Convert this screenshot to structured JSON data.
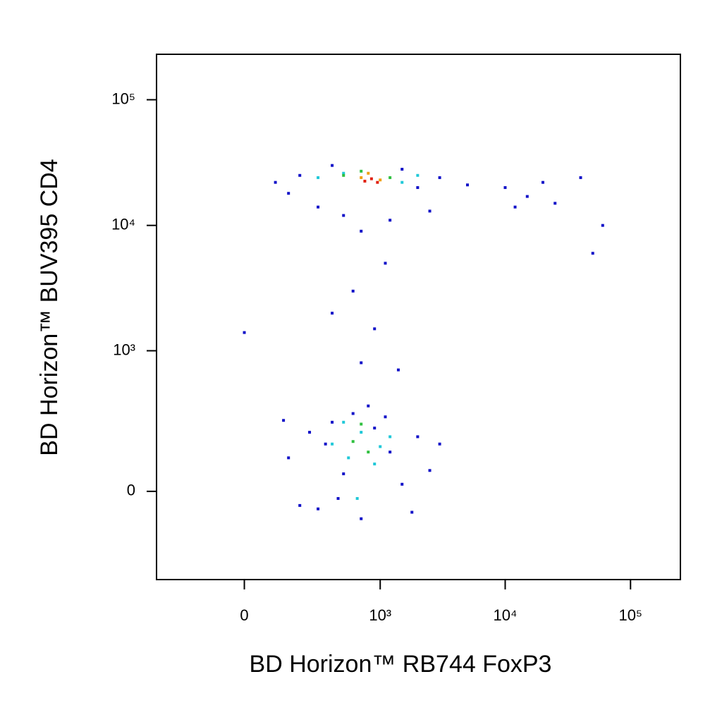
{
  "chart_data": {
    "type": "scatter",
    "x_label": "BD Horizon™ RB744 FoxP3",
    "y_label": "BD Horizon™  BUV395  CD4",
    "xscale": "biexponential",
    "yscale": "biexponential",
    "xlim": [
      -400,
      250000
    ],
    "ylim": [
      -370,
      230000
    ],
    "xticks": [
      0,
      {
        "value": 1000,
        "label": "10³"
      },
      {
        "value": 10000,
        "label": "10⁴"
      },
      {
        "value": 100000,
        "label": "10⁵"
      }
    ],
    "yticks": [
      0,
      {
        "value": 1000,
        "label": "10³"
      },
      {
        "value": 10000,
        "label": "10⁴"
      },
      {
        "value": 100000,
        "label": "10⁵"
      }
    ],
    "series": [
      {
        "color": "#1010c8",
        "x": [
          150,
          250,
          300,
          400,
          500,
          600,
          700,
          900,
          1200,
          1500,
          2000,
          2500,
          350,
          450,
          1100,
          1800,
          200,
          3000,
          800,
          130,
          100,
          200,
          300,
          400,
          500,
          1500,
          2000,
          3000,
          1200,
          700,
          10000,
          15000,
          20000,
          25000,
          40000,
          12000,
          60000,
          150,
          2500,
          5000,
          600,
          900,
          700,
          1100,
          400,
          1400,
          0,
          50000
        ],
        "y": [
          100,
          200,
          -50,
          250,
          50,
          300,
          -80,
          220,
          120,
          20,
          180,
          60,
          150,
          -20,
          280,
          -60,
          -40,
          150,
          350,
          260,
          22000,
          25000,
          14000,
          30000,
          12000,
          28000,
          20000,
          24000,
          11000,
          9000,
          20000,
          17000,
          22000,
          15000,
          24000,
          14000,
          10000,
          18000,
          13000,
          21000,
          3000,
          1500,
          800,
          5000,
          2000,
          700,
          1400,
          6000
        ]
      },
      {
        "color": "#20c8d8",
        "x": [
          400,
          550,
          700,
          900,
          1200,
          500,
          650,
          1000,
          300,
          500,
          1500,
          2000
        ],
        "y": [
          150,
          100,
          200,
          80,
          180,
          250,
          -20,
          140,
          24000,
          26000,
          22000,
          25000
        ]
      },
      {
        "color": "#30c040",
        "x": [
          600,
          800,
          700,
          500,
          1200,
          700
        ],
        "y": [
          160,
          120,
          240,
          25000,
          24000,
          27000
        ]
      },
      {
        "color": "#f0a010",
        "x": [
          700,
          1000,
          800
        ],
        "y": [
          24000,
          23000,
          26000
        ]
      },
      {
        "color": "#e02010",
        "x": [
          850,
          950,
          750
        ],
        "y": [
          23500,
          22000,
          22500
        ]
      }
    ]
  }
}
